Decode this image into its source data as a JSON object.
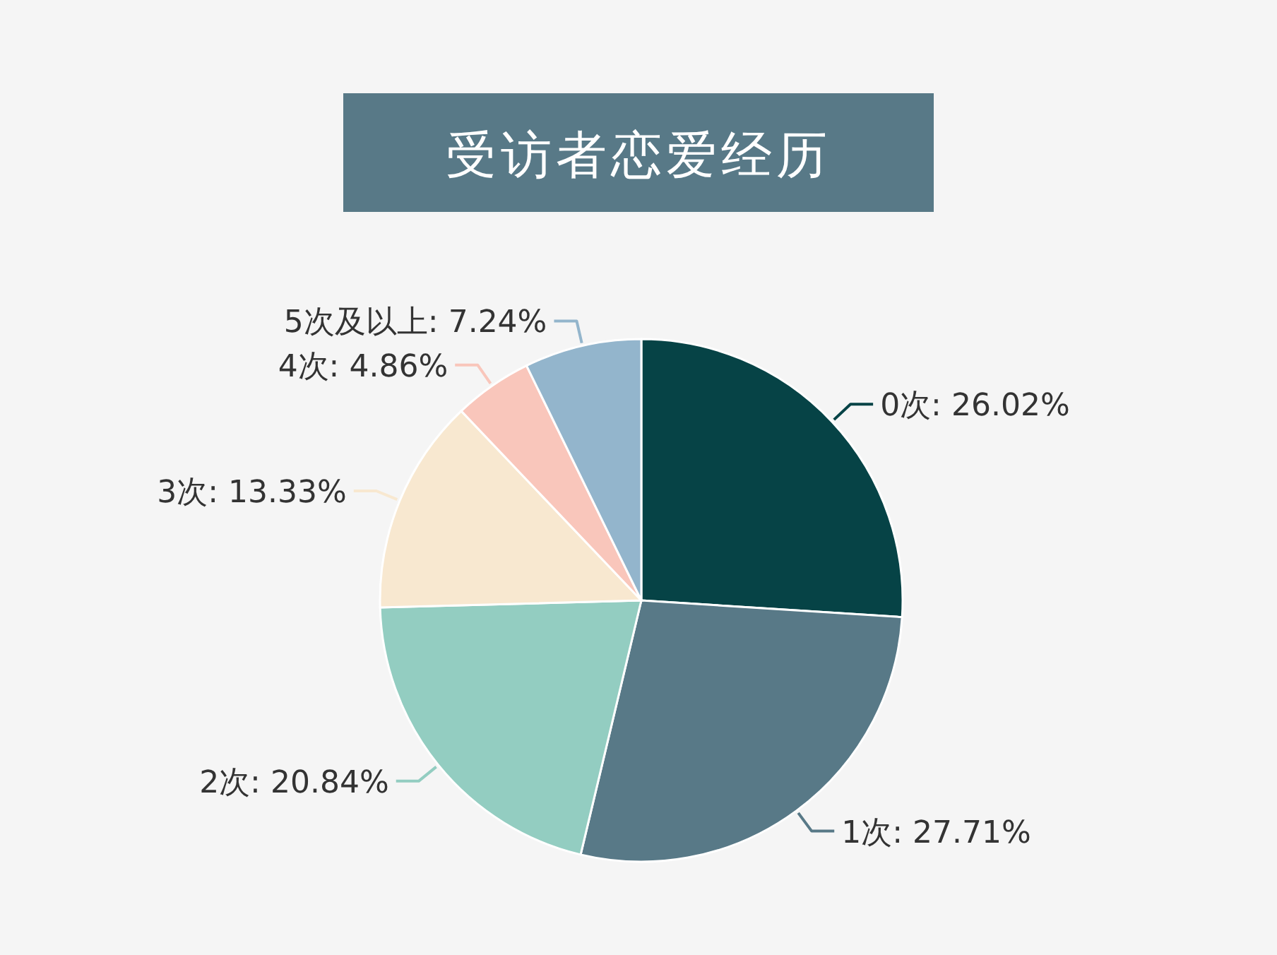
{
  "chart_data": {
    "type": "pie",
    "title": "受访者恋爱经历",
    "categories": [
      "0次",
      "1次",
      "2次",
      "3次",
      "4次",
      "5次及以上"
    ],
    "values": [
      26.02,
      27.71,
      20.84,
      13.33,
      4.86,
      7.24
    ],
    "value_labels": [
      "26.02%",
      "27.71%",
      "20.84%",
      "13.33%",
      "4.86%",
      "7.24%"
    ],
    "colors": [
      "#064346",
      "#587987",
      "#93cdc1",
      "#f8e8d0",
      "#f9c6bb",
      "#93b5cc"
    ],
    "legend": false
  }
}
